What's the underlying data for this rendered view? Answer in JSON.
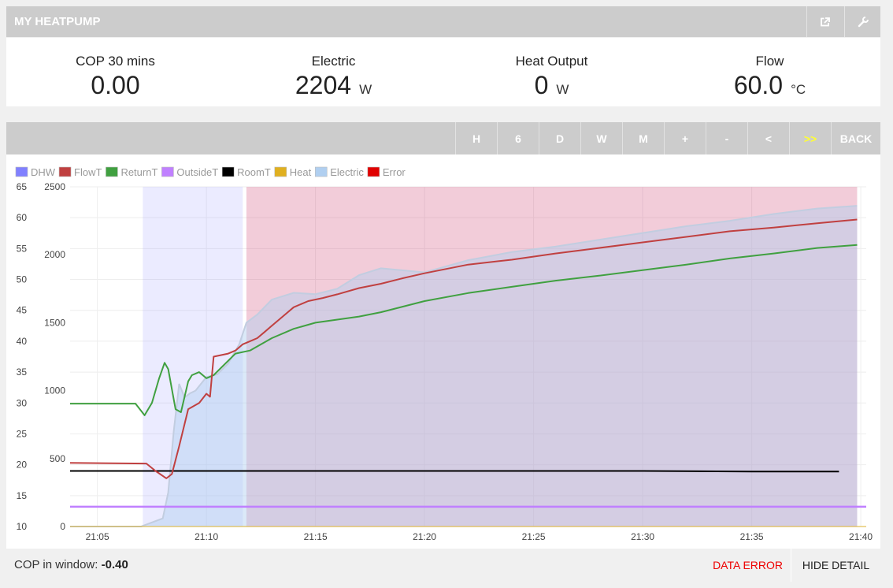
{
  "header": {
    "title": "MY HEATPUMP",
    "icons": [
      "external-link-icon",
      "wrench-icon"
    ]
  },
  "stats": [
    {
      "label": "COP 30 mins",
      "value": "0.00",
      "unit": ""
    },
    {
      "label": "Electric",
      "value": "2204",
      "unit": "W"
    },
    {
      "label": "Heat Output",
      "value": "0",
      "unit": "W"
    },
    {
      "label": "Flow",
      "value": "60.0",
      "unit": "°C"
    }
  ],
  "toolbar": {
    "buttons": [
      {
        "label": "H"
      },
      {
        "label": "6"
      },
      {
        "label": "D"
      },
      {
        "label": "W"
      },
      {
        "label": "M"
      },
      {
        "label": "+"
      },
      {
        "label": "-"
      },
      {
        "label": "<"
      },
      {
        "label": ">>"
      },
      {
        "label": "BACK"
      }
    ],
    "active_color": "#ffff33"
  },
  "chart_data": {
    "type": "line",
    "legend": [
      {
        "name": "DHW",
        "color": "#8080ff"
      },
      {
        "name": "FlowT",
        "color": "#c04040"
      },
      {
        "name": "ReturnT",
        "color": "#40a040"
      },
      {
        "name": "OutsideT",
        "color": "#c080ff"
      },
      {
        "name": "RoomT",
        "color": "#000000"
      },
      {
        "name": "Heat",
        "color": "#e0b020"
      },
      {
        "name": "Electric",
        "color": "#b0cff0"
      },
      {
        "name": "Error",
        "color": "#e00000"
      }
    ],
    "legend_position": "top-left",
    "x_unit": "minutes",
    "xlim": [
      "21:03:45",
      "21:40:15"
    ],
    "x_ticks": [
      "21:05",
      "21:10",
      "21:15",
      "21:20",
      "21:25",
      "21:30",
      "21:35",
      "21:40"
    ],
    "y_left": {
      "ylim": [
        10,
        65
      ],
      "ticks": [
        10,
        15,
        20,
        25,
        30,
        35,
        40,
        45,
        50,
        55,
        60,
        65
      ]
    },
    "y_right": {
      "ylim": [
        0,
        2500
      ],
      "ticks": [
        0,
        500,
        1000,
        1500,
        2000,
        2500
      ]
    },
    "grid": true,
    "dhw_band": {
      "from": "21:07:05",
      "to": "21:11:40"
    },
    "error_band": {
      "from": "21:11:50",
      "to": "21:39:50"
    },
    "series": [
      {
        "name": "FlowT",
        "axis": "left",
        "x": [
          "21:03:45",
          "21:07:15",
          "21:07:40",
          "21:08:10",
          "21:08:25",
          "21:08:45",
          "21:09:10",
          "21:09:40",
          "21:10:00",
          "21:10:10",
          "21:10:20",
          "21:11:00",
          "21:11:20",
          "21:11:40",
          "21:12:00",
          "21:12:20",
          "21:12:40",
          "21:13:00",
          "21:13:20",
          "21:13:40",
          "21:14:00",
          "21:14:40",
          "21:15:20",
          "21:16:00",
          "21:17:00",
          "21:18:00",
          "21:19:00",
          "21:20:00",
          "21:22:00",
          "21:24:00",
          "21:26:00",
          "21:28:00",
          "21:30:00",
          "21:32:00",
          "21:34:00",
          "21:36:00",
          "21:38:00",
          "21:39:50"
        ],
        "y": [
          20.3,
          20.2,
          19.0,
          17.8,
          18.5,
          23.0,
          29.0,
          30.0,
          31.5,
          31.0,
          37.5,
          38.0,
          38.5,
          39.5,
          40.0,
          40.5,
          41.5,
          42.5,
          43.5,
          44.5,
          45.5,
          46.5,
          47.0,
          47.6,
          48.6,
          49.3,
          50.2,
          51.0,
          52.4,
          53.2,
          54.2,
          55.1,
          56.0,
          56.9,
          57.8,
          58.4,
          59.1,
          59.7
        ]
      },
      {
        "name": "ReturnT",
        "axis": "left",
        "x": [
          "21:03:45",
          "21:06:45",
          "21:07:10",
          "21:07:30",
          "21:07:50",
          "21:08:05",
          "21:08:15",
          "21:08:35",
          "21:08:50",
          "21:09:10",
          "21:09:20",
          "21:09:40",
          "21:10:00",
          "21:10:20",
          "21:11:20",
          "21:12:00",
          "21:13:00",
          "21:14:00",
          "21:15:00",
          "21:16:00",
          "21:17:00",
          "21:18:00",
          "21:20:00",
          "21:22:00",
          "21:24:00",
          "21:26:00",
          "21:28:00",
          "21:30:00",
          "21:32:00",
          "21:34:00",
          "21:36:00",
          "21:38:00",
          "21:39:50"
        ],
        "y": [
          29.9,
          29.9,
          28.0,
          30.0,
          34.0,
          36.5,
          35.5,
          29.0,
          28.5,
          33.5,
          34.5,
          35.0,
          34.0,
          34.5,
          38.0,
          38.5,
          40.5,
          42.0,
          43.0,
          43.5,
          44.0,
          44.7,
          46.5,
          47.8,
          48.8,
          49.8,
          50.6,
          51.5,
          52.4,
          53.4,
          54.2,
          55.1,
          55.6
        ]
      },
      {
        "name": "RoomT",
        "axis": "left",
        "x": [
          "21:03:45",
          "21:15:00",
          "21:25:00",
          "21:30:00",
          "21:35:00",
          "21:39:00"
        ],
        "y": [
          19.0,
          19.0,
          19.0,
          19.0,
          18.9,
          18.9
        ]
      },
      {
        "name": "OutsideT",
        "axis": "left",
        "x": [
          "21:03:45",
          "21:40:15"
        ],
        "y": [
          13.2,
          13.2
        ]
      },
      {
        "name": "Electric",
        "axis": "right",
        "x": [
          "21:03:45",
          "21:07:00",
          "21:07:30",
          "21:08:00",
          "21:08:15",
          "21:08:30",
          "21:08:45",
          "21:09:00",
          "21:09:15",
          "21:09:30",
          "21:10:00",
          "21:10:30",
          "21:11:00",
          "21:11:30",
          "21:11:50",
          "21:12:20",
          "21:13:00",
          "21:14:00",
          "21:15:00",
          "21:16:00",
          "21:17:00",
          "21:18:00",
          "21:20:00",
          "21:22:00",
          "21:24:00",
          "21:26:00",
          "21:28:00",
          "21:30:00",
          "21:32:00",
          "21:34:00",
          "21:36:00",
          "21:38:00",
          "21:39:50"
        ],
        "y": [
          0,
          0,
          30,
          60,
          250,
          700,
          1050,
          950,
          980,
          1000,
          1100,
          1120,
          1200,
          1340,
          1500,
          1560,
          1670,
          1720,
          1710,
          1750,
          1850,
          1900,
          1870,
          1960,
          2020,
          2060,
          2110,
          2160,
          2210,
          2250,
          2300,
          2340,
          2360
        ]
      },
      {
        "name": "Heat",
        "axis": "right",
        "x": [
          "21:03:45",
          "21:40:15"
        ],
        "y": [
          0,
          0
        ]
      }
    ]
  },
  "footer": {
    "cop_label": "COP in window:",
    "cop_value": "-0.40",
    "error_label": "DATA ERROR",
    "hide_label": "HIDE DETAIL"
  }
}
